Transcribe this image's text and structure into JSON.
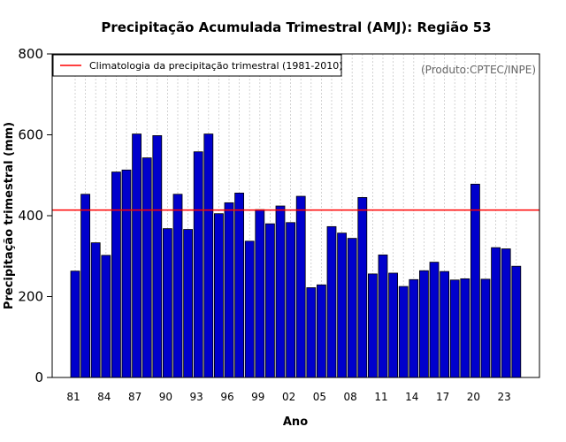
{
  "chart_data": {
    "type": "bar",
    "title": "Precipitação Acumulada Trimestral (AMJ): Região 53",
    "xlabel": "Ano",
    "ylabel": "Precipitação trimestral (mm)",
    "source": "(Produto:CPTEC/INPE)",
    "ylim": [
      0,
      800
    ],
    "yticks": [
      0,
      200,
      400,
      600,
      800
    ],
    "ytick_labels": [
      "0",
      "200",
      "400",
      "600",
      "800"
    ],
    "categories": [
      "81",
      "82",
      "83",
      "84",
      "85",
      "86",
      "87",
      "88",
      "89",
      "90",
      "91",
      "92",
      "93",
      "94",
      "95",
      "96",
      "97",
      "98",
      "99",
      "00",
      "01",
      "02",
      "03",
      "04",
      "05",
      "06",
      "07",
      "08",
      "09",
      "10",
      "11",
      "12",
      "13",
      "14",
      "15",
      "16",
      "17",
      "18",
      "19",
      "20",
      "21",
      "22",
      "23",
      "24"
    ],
    "xtick_labels": [
      "81",
      "84",
      "87",
      "90",
      "93",
      "96",
      "99",
      "02",
      "05",
      "08",
      "11",
      "14",
      "17",
      "20",
      "23"
    ],
    "values": [
      263,
      453,
      333,
      302,
      508,
      513,
      602,
      543,
      598,
      368,
      453,
      366,
      558,
      602,
      405,
      432,
      456,
      337,
      415,
      380,
      424,
      383,
      448,
      222,
      229,
      373,
      357,
      344,
      445,
      256,
      303,
      258,
      225,
      242,
      264,
      285,
      262,
      241,
      244,
      478,
      243,
      321,
      318,
      275
    ],
    "climatology": {
      "value": 414,
      "label": "Climatologia da precipitação trimestral (1981-2010)",
      "color": "#ff0000"
    },
    "bar_color": "#0000cc",
    "grid": "vertical dotted",
    "legend_position": "top-left"
  }
}
